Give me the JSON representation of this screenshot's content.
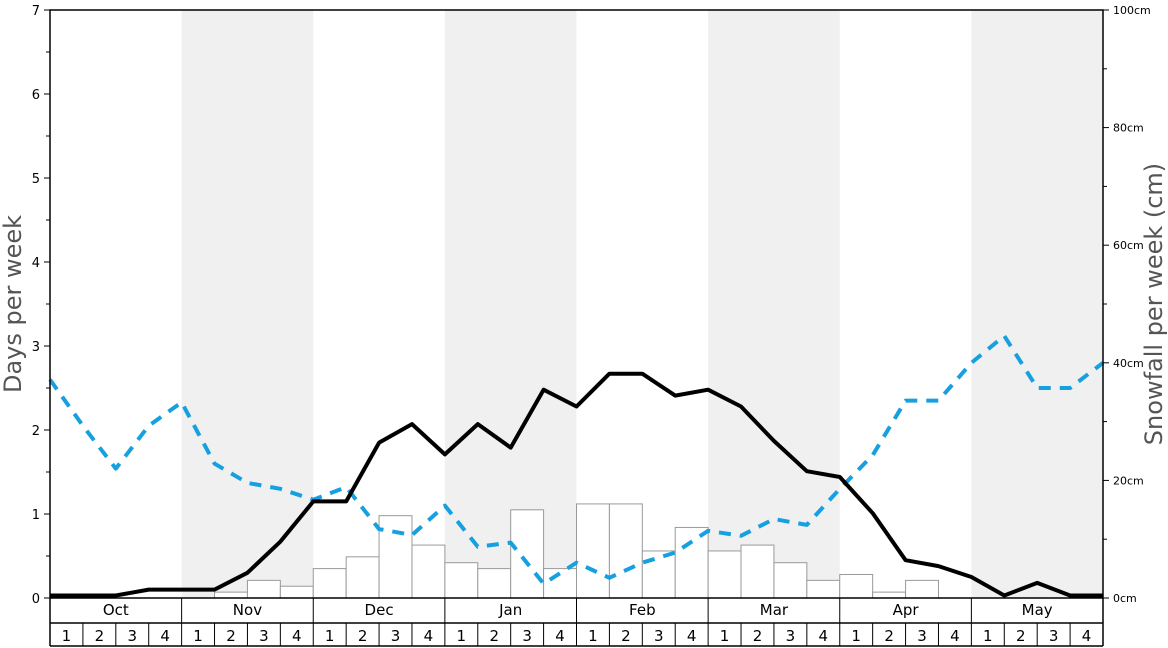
{
  "chart_data": {
    "type": "bar+line",
    "y_left_label": "Days per week",
    "y_right_label": "Snowfall per week (cm)",
    "y_left_range": [
      0,
      7
    ],
    "y_left_ticks": [
      "0",
      "1",
      "2",
      "3",
      "4",
      "5",
      "6",
      "7"
    ],
    "y_right_range": [
      0,
      100
    ],
    "y_right_ticks": [
      "0cm",
      "20cm",
      "40cm",
      "60cm",
      "80cm",
      "100cm"
    ],
    "months": [
      "Oct",
      "Nov",
      "Dec",
      "Jan",
      "Feb",
      "Mar",
      "Apr",
      "May"
    ],
    "week_labels": [
      "1",
      "2",
      "3",
      "4"
    ],
    "snowfall_bars_cm": [
      0,
      0,
      0,
      0,
      0,
      1,
      3,
      2,
      5,
      7,
      14,
      9,
      6,
      5,
      15,
      5,
      16,
      16,
      8,
      12,
      8,
      9,
      6,
      3,
      4,
      1,
      3,
      0,
      0,
      0,
      0,
      0
    ],
    "days_line_black": [
      0.03,
      0.03,
      0.03,
      0.1,
      0.1,
      0.1,
      0.3,
      0.67,
      1.15,
      1.15,
      1.85,
      2.07,
      1.71,
      2.07,
      1.79,
      2.48,
      2.28,
      2.67,
      2.67,
      2.41,
      2.48,
      2.28,
      1.87,
      1.51,
      1.44,
      1.01,
      0.45,
      0.38,
      0.25,
      0.03,
      0.18,
      0.03
    ],
    "dashed_line_blue": [
      2.6,
      2.05,
      1.54,
      2.05,
      2.33,
      1.6,
      1.37,
      1.3,
      1.17,
      1.32,
      0.82,
      0.75,
      1.1,
      0.61,
      0.66,
      0.17,
      0.42,
      0.24,
      0.42,
      0.54,
      0.8,
      0.74,
      0.94,
      0.87,
      1.3,
      1.7,
      2.35,
      2.35,
      2.8,
      3.12,
      2.5,
      2.5,
      2.8
    ],
    "colors": {
      "black_line": "#000000",
      "dashed_line": "#17a0e0",
      "bar_fill": "#ffffff",
      "bar_stroke": "#999999",
      "band_shade": "#f0f0f0"
    }
  }
}
